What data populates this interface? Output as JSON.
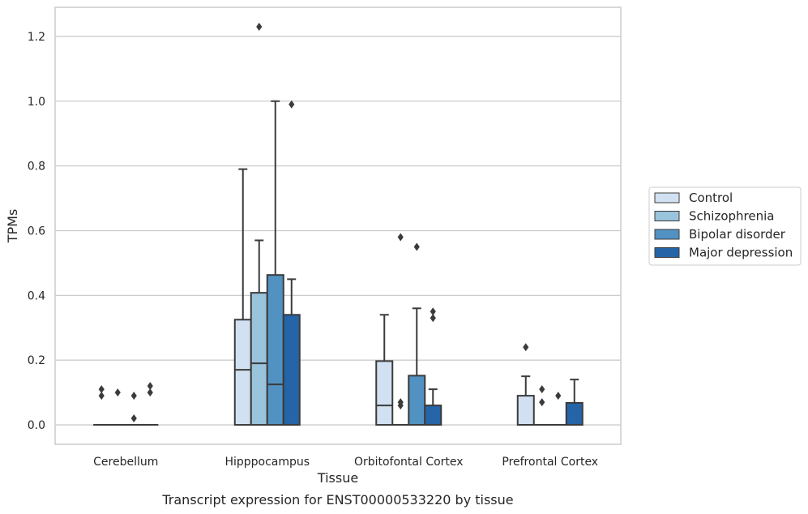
{
  "chart_data": {
    "type": "box",
    "categories": [
      "Cerebellum",
      "Hipppocampus",
      "Orbitofontal Cortex",
      "Prefrontal Cortex"
    ],
    "xlabel": "Tissue",
    "ylabel": "TPMs",
    "caption": "Transcript expression for ENST00000533220 by tissue",
    "ylim": [
      -0.06,
      1.29
    ],
    "yticks": [
      0.0,
      0.2,
      0.4,
      0.6,
      0.8,
      1.0,
      1.2
    ],
    "ytick_labels": [
      "0.0",
      "0.2",
      "0.4",
      "0.6",
      "0.8",
      "1.0",
      "1.2"
    ],
    "grid": true,
    "legend_position": "right",
    "series": [
      {
        "name": "Control",
        "color": "#d1e1f1",
        "boxes": [
          {
            "q1": 0.0,
            "median": 0.0,
            "q3": 0.0,
            "whisker_low": 0.0,
            "whisker_high": 0.0,
            "outliers": [
              0.09,
              0.11
            ]
          },
          {
            "q1": 0.0,
            "median": 0.17,
            "q3": 0.325,
            "whisker_low": 0.0,
            "whisker_high": 0.79,
            "outliers": []
          },
          {
            "q1": 0.0,
            "median": 0.06,
            "q3": 0.197,
            "whisker_low": 0.0,
            "whisker_high": 0.34,
            "outliers": []
          },
          {
            "q1": 0.0,
            "median": 0.0,
            "q3": 0.09,
            "whisker_low": 0.0,
            "whisker_high": 0.15,
            "outliers": [
              0.24
            ]
          }
        ]
      },
      {
        "name": "Schizophrenia",
        "color": "#9ac3dc",
        "boxes": [
          {
            "q1": 0.0,
            "median": 0.0,
            "q3": 0.0,
            "whisker_low": 0.0,
            "whisker_high": 0.0,
            "outliers": [
              0.1
            ]
          },
          {
            "q1": 0.0,
            "median": 0.19,
            "q3": 0.408,
            "whisker_low": 0.0,
            "whisker_high": 0.57,
            "outliers": [
              1.23
            ]
          },
          {
            "q1": 0.0,
            "median": 0.0,
            "q3": 0.0,
            "whisker_low": 0.0,
            "whisker_high": 0.0,
            "outliers": [
              0.06,
              0.07,
              0.58
            ]
          },
          {
            "q1": 0.0,
            "median": 0.0,
            "q3": 0.0,
            "whisker_low": 0.0,
            "whisker_high": 0.0,
            "outliers": [
              0.07,
              0.11
            ]
          }
        ]
      },
      {
        "name": "Bipolar disorder",
        "color": "#5192c2",
        "boxes": [
          {
            "q1": 0.0,
            "median": 0.0,
            "q3": 0.0,
            "whisker_low": 0.0,
            "whisker_high": 0.0,
            "outliers": [
              0.02,
              0.09
            ]
          },
          {
            "q1": 0.0,
            "median": 0.125,
            "q3": 0.463,
            "whisker_low": 0.0,
            "whisker_high": 1.0,
            "outliers": []
          },
          {
            "q1": 0.0,
            "median": 0.0,
            "q3": 0.152,
            "whisker_low": 0.0,
            "whisker_high": 0.36,
            "outliers": [
              0.55
            ]
          },
          {
            "q1": 0.0,
            "median": 0.0,
            "q3": 0.0,
            "whisker_low": 0.0,
            "whisker_high": 0.0,
            "outliers": [
              0.09
            ]
          }
        ]
      },
      {
        "name": "Major depression",
        "color": "#2464a7",
        "boxes": [
          {
            "q1": 0.0,
            "median": 0.0,
            "q3": 0.0,
            "whisker_low": 0.0,
            "whisker_high": 0.0,
            "outliers": [
              0.1,
              0.12
            ]
          },
          {
            "q1": 0.0,
            "median": 0.0,
            "q3": 0.34,
            "whisker_low": 0.0,
            "whisker_high": 0.45,
            "outliers": [
              0.99
            ]
          },
          {
            "q1": 0.0,
            "median": 0.0,
            "q3": 0.06,
            "whisker_low": 0.0,
            "whisker_high": 0.11,
            "outliers": [
              0.33,
              0.35
            ]
          },
          {
            "q1": 0.0,
            "median": 0.0,
            "q3": 0.068,
            "whisker_low": 0.0,
            "whisker_high": 0.14,
            "outliers": []
          }
        ]
      }
    ]
  }
}
